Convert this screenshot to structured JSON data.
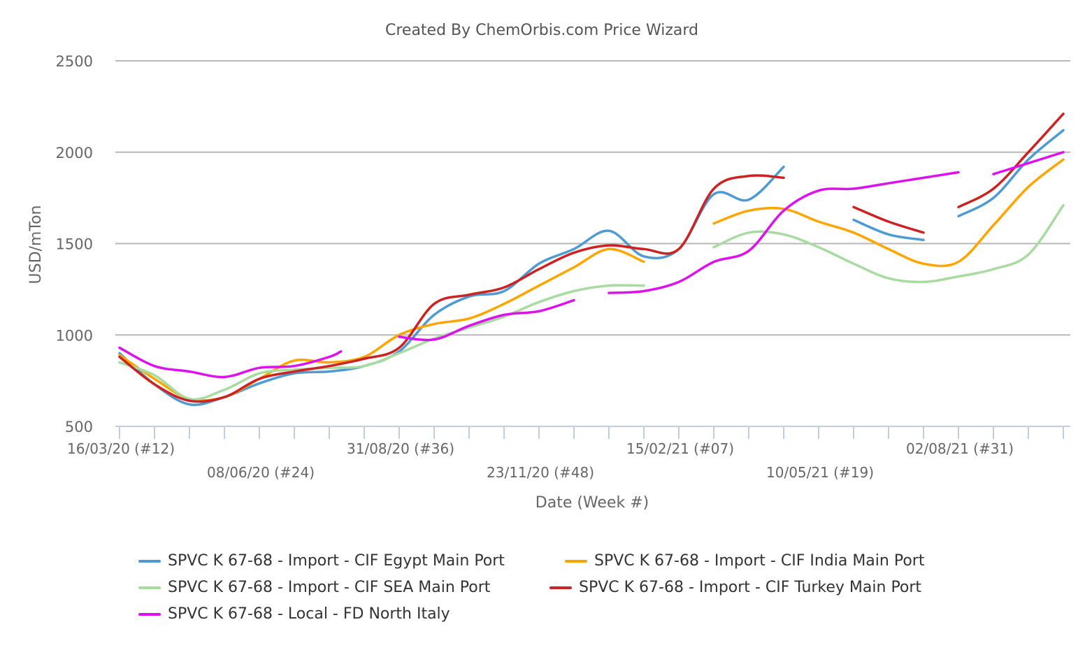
{
  "chart_data": {
    "type": "line",
    "title": "Created By ChemOrbis.com Price Wizard",
    "xlabel": "Date (Week #)",
    "ylabel": "USD/mTon",
    "ylim": [
      500,
      2500
    ],
    "yticks": [
      500,
      1000,
      1500,
      2000,
      2500
    ],
    "xlim": [
      "2020-03-16",
      "2021-10-04"
    ],
    "grid": "horizontal",
    "legend": "bottom",
    "xtick_labels": [
      {
        "date": "2020-03-16",
        "label": "16/03/20 (#12)",
        "row": 1
      },
      {
        "date": "2020-06-08",
        "label": "08/06/20 (#24)",
        "row": 2
      },
      {
        "date": "2020-08-31",
        "label": "31/08/20 (#36)",
        "row": 1
      },
      {
        "date": "2020-11-23",
        "label": "23/11/20 (#48)",
        "row": 2
      },
      {
        "date": "2021-02-15",
        "label": "15/02/21 (#07)",
        "row": 1
      },
      {
        "date": "2021-05-10",
        "label": "10/05/21 (#19)",
        "row": 2
      },
      {
        "date": "2021-08-02",
        "label": "02/08/21 (#31)",
        "row": 1
      }
    ],
    "series": [
      {
        "name": "SPVC K 67-68 - Import - CIF Egypt Main Port",
        "color": "#4e9bd4",
        "points": [
          [
            "2020-03-16",
            900
          ],
          [
            "2020-04-06",
            730
          ],
          [
            "2020-04-27",
            620
          ],
          [
            "2020-05-18",
            660
          ],
          [
            "2020-06-08",
            735
          ],
          [
            "2020-06-29",
            790
          ],
          [
            "2020-07-20",
            800
          ],
          [
            "2020-08-10",
            830
          ],
          [
            "2020-08-31",
            910
          ],
          [
            "2020-09-21",
            1110
          ],
          [
            "2020-10-12",
            1210
          ],
          [
            "2020-11-02",
            1240
          ],
          [
            "2020-11-23",
            1390
          ],
          [
            "2020-12-14",
            1470
          ],
          [
            "2021-01-04",
            1570
          ],
          [
            "2021-01-25",
            1430
          ],
          [
            "2021-02-15",
            1470
          ],
          [
            "2021-03-08",
            1770
          ],
          [
            "2021-03-29",
            1740
          ],
          [
            "2021-04-19",
            1920
          ],
          [
            "2021-05-10",
            null
          ],
          [
            "2021-05-31",
            1630
          ],
          [
            "2021-06-21",
            1550
          ],
          [
            "2021-07-12",
            1520
          ],
          [
            "2021-07-19",
            null
          ],
          [
            "2021-08-02",
            1650
          ],
          [
            "2021-08-23",
            1750
          ],
          [
            "2021-09-13",
            1960
          ],
          [
            "2021-10-04",
            2120
          ]
        ]
      },
      {
        "name": "SPVC K 67-68 - Import - CIF India Main Port",
        "color": "#ffa500",
        "points": [
          [
            "2020-03-16",
            890
          ],
          [
            "2020-04-06",
            760
          ],
          [
            "2020-04-27",
            650
          ],
          [
            "2020-05-18",
            660
          ],
          [
            "2020-06-08",
            760
          ],
          [
            "2020-06-29",
            860
          ],
          [
            "2020-07-20",
            850
          ],
          [
            "2020-08-10",
            880
          ],
          [
            "2020-08-31",
            1000
          ],
          [
            "2020-09-21",
            1060
          ],
          [
            "2020-10-12",
            1090
          ],
          [
            "2020-11-02",
            1170
          ],
          [
            "2020-11-23",
            1270
          ],
          [
            "2020-12-14",
            1370
          ],
          [
            "2021-01-04",
            1470
          ],
          [
            "2021-01-25",
            1400
          ],
          [
            "2021-02-15",
            null
          ],
          [
            "2021-03-08",
            1610
          ],
          [
            "2021-03-29",
            1680
          ],
          [
            "2021-04-19",
            1690
          ],
          [
            "2021-05-10",
            1620
          ],
          [
            "2021-05-31",
            1560
          ],
          [
            "2021-06-21",
            1470
          ],
          [
            "2021-07-12",
            1390
          ],
          [
            "2021-08-02",
            1400
          ],
          [
            "2021-08-23",
            1600
          ],
          [
            "2021-09-13",
            1810
          ],
          [
            "2021-10-04",
            1960
          ]
        ]
      },
      {
        "name": "SPVC K 67-68 - Import - CIF SEA Main Port",
        "color": "#a8dba0",
        "points": [
          [
            "2020-03-16",
            850
          ],
          [
            "2020-04-06",
            780
          ],
          [
            "2020-04-27",
            650
          ],
          [
            "2020-05-18",
            700
          ],
          [
            "2020-06-08",
            790
          ],
          [
            "2020-06-29",
            810
          ],
          [
            "2020-07-20",
            820
          ],
          [
            "2020-08-10",
            830
          ],
          [
            "2020-08-31",
            900
          ],
          [
            "2020-09-21",
            980
          ],
          [
            "2020-10-12",
            1040
          ],
          [
            "2020-11-02",
            1100
          ],
          [
            "2020-11-23",
            1180
          ],
          [
            "2020-12-14",
            1240
          ],
          [
            "2021-01-04",
            1270
          ],
          [
            "2021-01-25",
            1270
          ],
          [
            "2021-02-15",
            null
          ],
          [
            "2021-03-08",
            1480
          ],
          [
            "2021-03-29",
            1560
          ],
          [
            "2021-04-19",
            1550
          ],
          [
            "2021-05-10",
            1480
          ],
          [
            "2021-05-31",
            1390
          ],
          [
            "2021-06-21",
            1310
          ],
          [
            "2021-07-12",
            1290
          ],
          [
            "2021-08-02",
            1320
          ],
          [
            "2021-08-23",
            1360
          ],
          [
            "2021-09-13",
            1440
          ],
          [
            "2021-10-04",
            1710
          ]
        ]
      },
      {
        "name": "SPVC K 67-68 - Import - CIF Turkey Main Port",
        "color": "#cc2222",
        "points": [
          [
            "2020-03-16",
            880
          ],
          [
            "2020-04-06",
            730
          ],
          [
            "2020-04-27",
            640
          ],
          [
            "2020-05-18",
            660
          ],
          [
            "2020-06-08",
            760
          ],
          [
            "2020-06-29",
            800
          ],
          [
            "2020-07-20",
            830
          ],
          [
            "2020-08-10",
            870
          ],
          [
            "2020-08-31",
            930
          ],
          [
            "2020-09-21",
            1170
          ],
          [
            "2020-10-12",
            1220
          ],
          [
            "2020-11-02",
            1260
          ],
          [
            "2020-11-23",
            1360
          ],
          [
            "2020-12-14",
            1450
          ],
          [
            "2021-01-04",
            1490
          ],
          [
            "2021-01-25",
            1470
          ],
          [
            "2021-02-15",
            1470
          ],
          [
            "2021-03-08",
            1800
          ],
          [
            "2021-03-29",
            1870
          ],
          [
            "2021-04-19",
            1860
          ],
          [
            "2021-05-10",
            null
          ],
          [
            "2021-05-31",
            1700
          ],
          [
            "2021-06-21",
            1620
          ],
          [
            "2021-07-12",
            1560
          ],
          [
            "2021-07-19",
            null
          ],
          [
            "2021-08-02",
            1700
          ],
          [
            "2021-08-23",
            1800
          ],
          [
            "2021-09-13",
            2000
          ],
          [
            "2021-10-04",
            2210
          ]
        ]
      },
      {
        "name": "SPVC K 67-68 - Local - FD North Italy",
        "color": "#dd11ee",
        "points": [
          [
            "2020-03-16",
            930
          ],
          [
            "2020-04-06",
            830
          ],
          [
            "2020-04-27",
            800
          ],
          [
            "2020-05-18",
            770
          ],
          [
            "2020-06-08",
            820
          ],
          [
            "2020-06-29",
            830
          ],
          [
            "2020-07-20",
            880
          ],
          [
            "2020-07-27",
            910
          ],
          [
            "2020-08-10",
            null
          ],
          [
            "2020-08-31",
            990
          ],
          [
            "2020-09-21",
            975
          ],
          [
            "2020-10-12",
            1050
          ],
          [
            "2020-11-02",
            1110
          ],
          [
            "2020-11-23",
            1130
          ],
          [
            "2020-12-14",
            1190
          ],
          [
            "2020-12-21",
            null
          ],
          [
            "2021-01-04",
            1230
          ],
          [
            "2021-01-25",
            1240
          ],
          [
            "2021-02-15",
            1290
          ],
          [
            "2021-03-08",
            1400
          ],
          [
            "2021-03-29",
            1460
          ],
          [
            "2021-04-19",
            1680
          ],
          [
            "2021-05-10",
            1790
          ],
          [
            "2021-05-31",
            1800
          ],
          [
            "2021-06-21",
            1830
          ],
          [
            "2021-07-12",
            1860
          ],
          [
            "2021-08-02",
            1890
          ],
          [
            "2021-08-09",
            null
          ],
          [
            "2021-08-23",
            1880
          ],
          [
            "2021-09-13",
            1940
          ],
          [
            "2021-10-04",
            2000
          ]
        ]
      }
    ]
  }
}
